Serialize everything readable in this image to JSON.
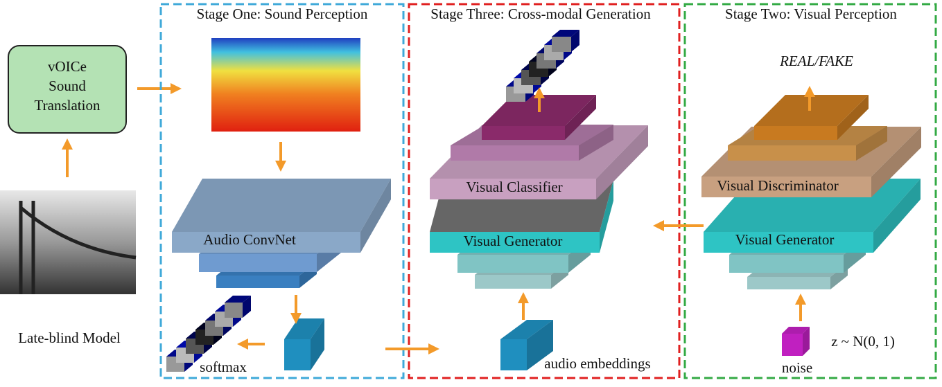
{
  "input": {
    "box_lines": [
      "vOICe",
      "Sound",
      "Translation"
    ],
    "caption": "Late-blind Model"
  },
  "stages": [
    {
      "title": "Stage One: Sound Perception",
      "network": "Audio ConvNet",
      "output": "softmax"
    },
    {
      "title": "Stage Three: Cross-modal Generation",
      "classifier": "Visual Classifier",
      "generator": "Visual Generator",
      "input": "audio embeddings"
    },
    {
      "title": "Stage Two: Visual Perception",
      "output": "REAL/FAKE",
      "discriminator": "Visual Discriminator",
      "generator": "Visual Generator",
      "input": "noise",
      "distribution": "z ~ N(0, 1)"
    }
  ]
}
